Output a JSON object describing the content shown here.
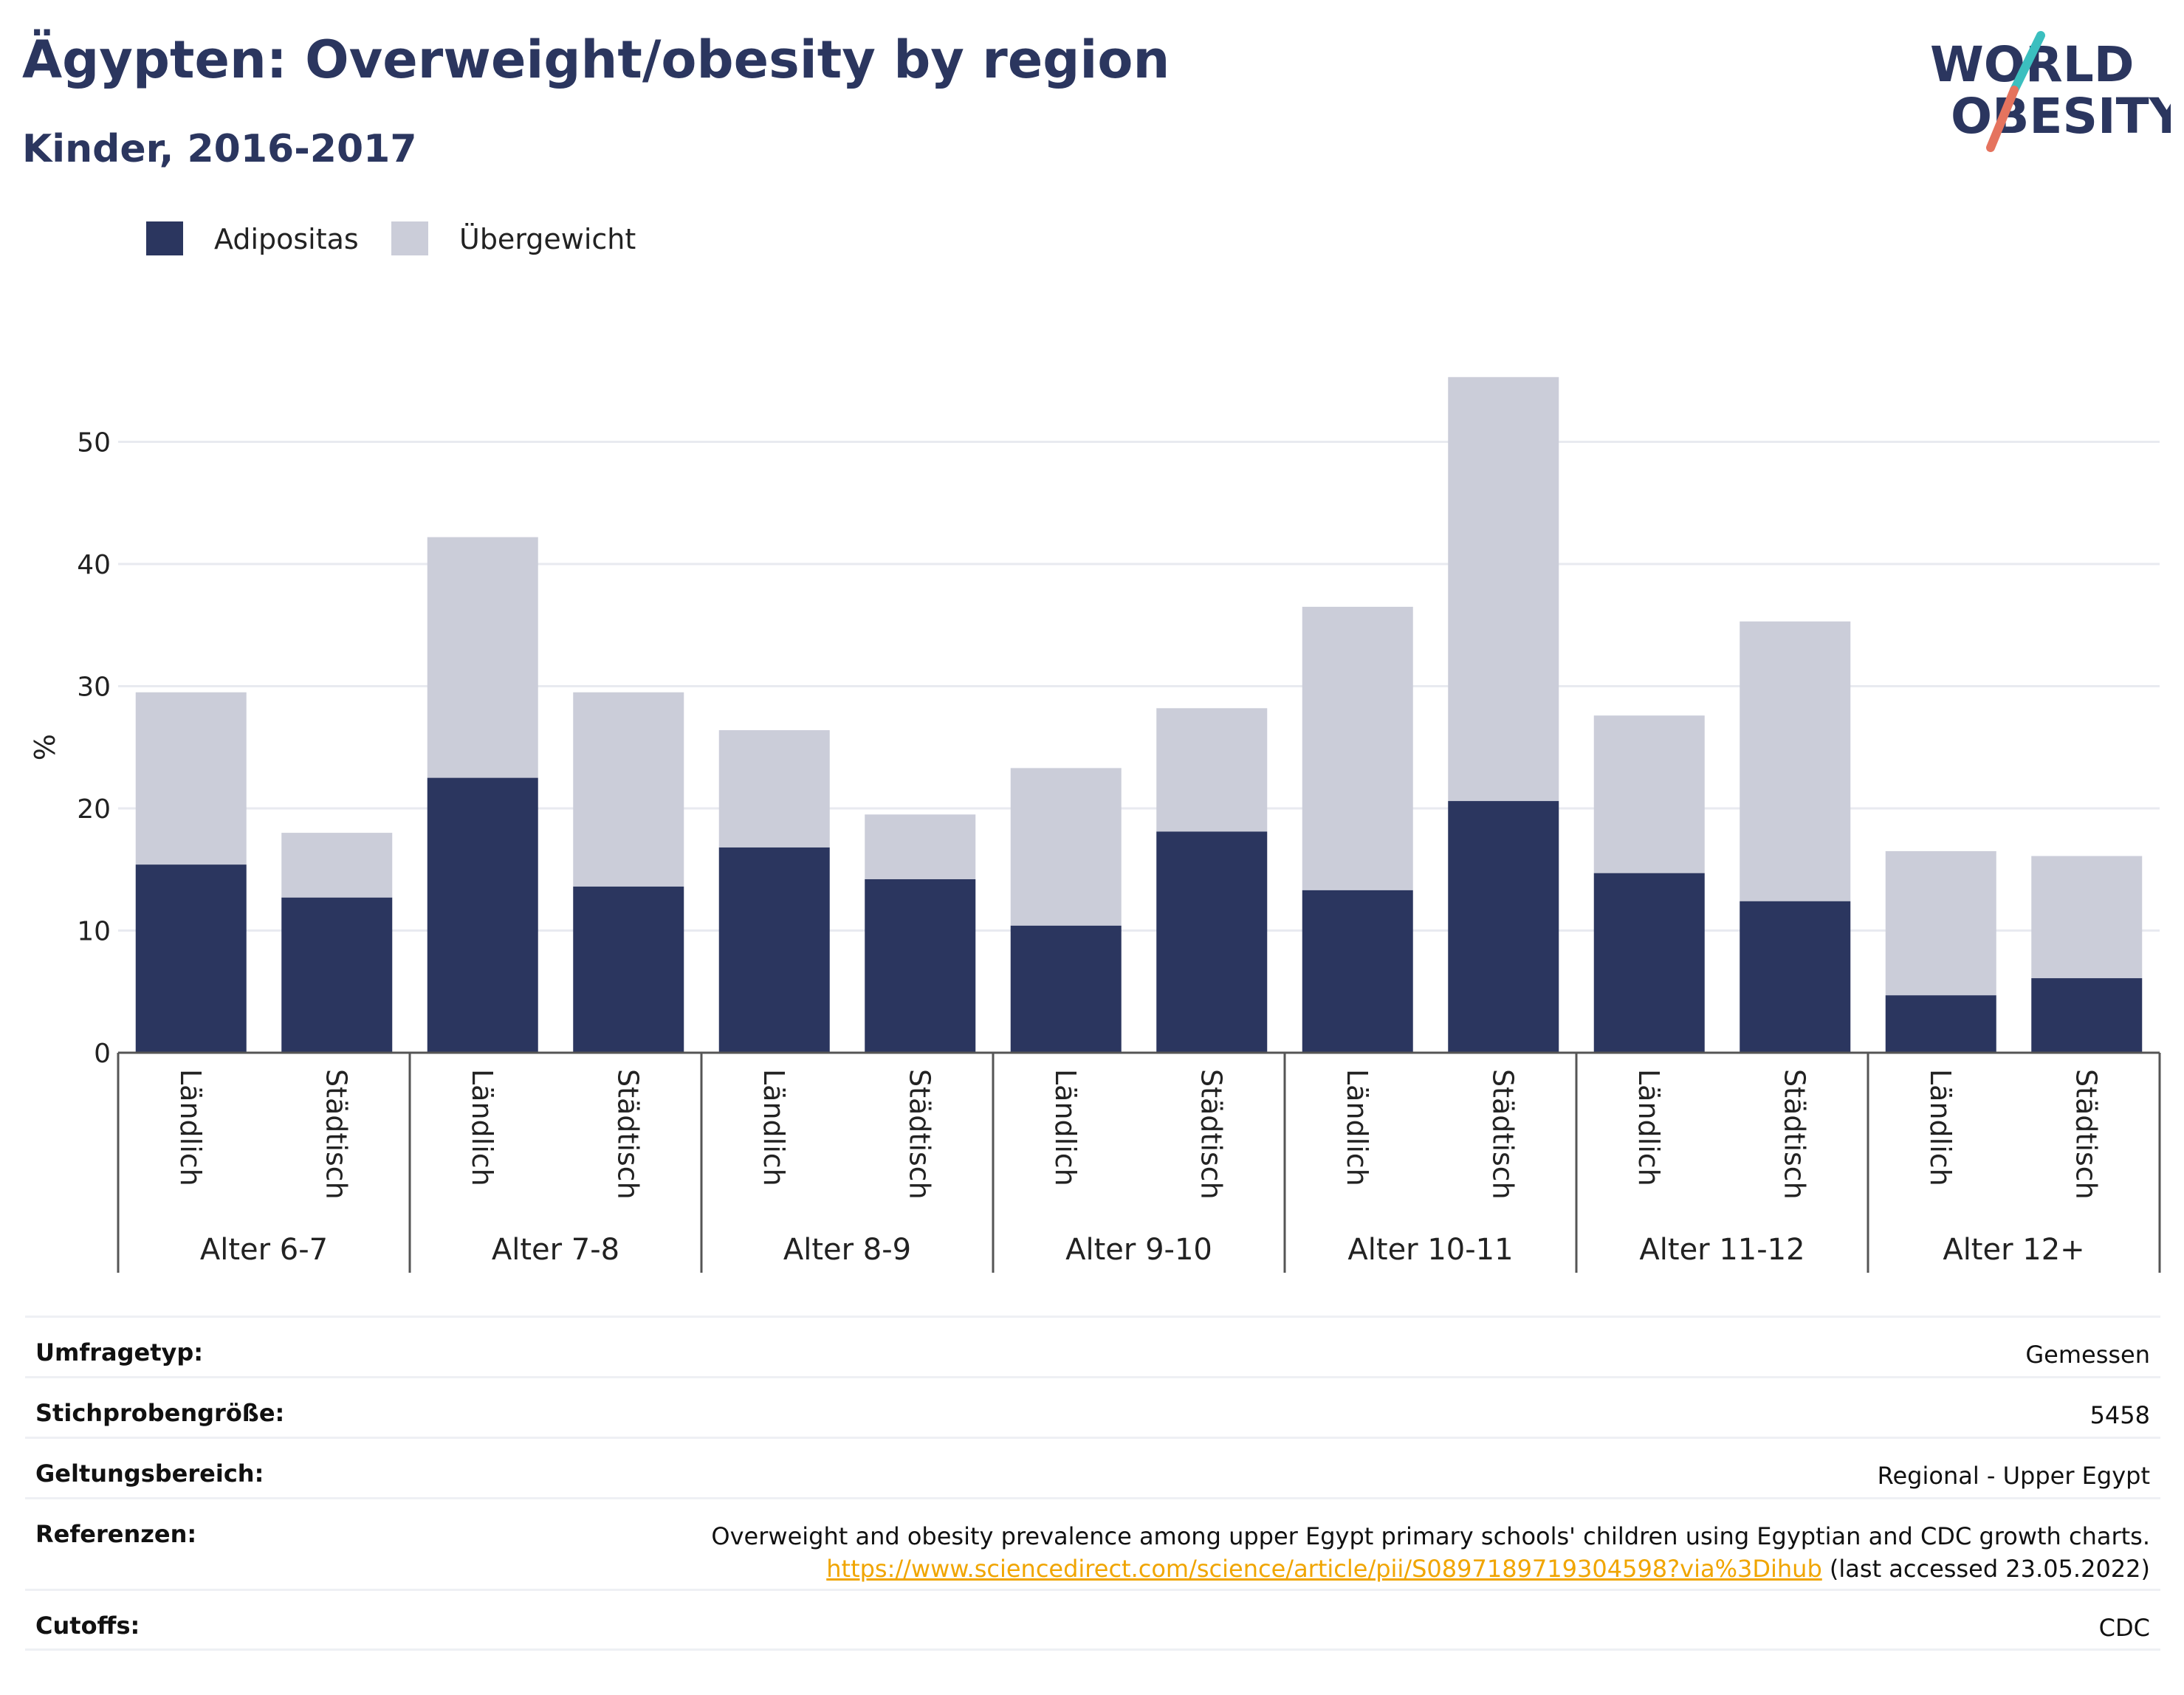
{
  "header": {
    "title": "Ägypten: Overweight/obesity by region",
    "subtitle": "Kinder, 2016-2017"
  },
  "logo": {
    "line1": "WORLD",
    "line2": "OBESITY",
    "colors": {
      "text": "#2b365f",
      "slash_top": "#3bbfbf",
      "slash_bottom": "#e5735e"
    }
  },
  "legend": [
    {
      "label": "Adipositas",
      "color": "#2b365f"
    },
    {
      "label": "Übergewicht",
      "color": "#cbcdd9"
    }
  ],
  "chart_data": {
    "type": "bar",
    "stacked": true,
    "ylabel": "%",
    "ylim": [
      0,
      57
    ],
    "yticks": [
      0,
      10,
      20,
      30,
      40,
      50
    ],
    "grid": true,
    "legend_position": "top-left",
    "groups": [
      "Alter 6-7",
      "Alter 7-8",
      "Alter 8-9",
      "Alter 9-10",
      "Alter 10-11",
      "Alter 11-12",
      "Alter 12+"
    ],
    "subcategories": [
      "Ländlich",
      "Städtisch"
    ],
    "series": [
      {
        "name": "Adipositas",
        "color": "#2b365f",
        "values": [
          15.4,
          12.7,
          22.5,
          13.6,
          16.8,
          14.2,
          10.4,
          18.1,
          13.3,
          20.6,
          14.7,
          12.4,
          4.7,
          6.1
        ]
      },
      {
        "name": "Übergewicht",
        "color": "#cbcdd9",
        "values": [
          14.1,
          5.3,
          19.7,
          15.9,
          9.6,
          5.3,
          12.9,
          10.1,
          23.2,
          34.7,
          12.9,
          22.9,
          11.8,
          10.0
        ]
      }
    ]
  },
  "meta": [
    {
      "key": "Umfragetyp:",
      "value": "Gemessen"
    },
    {
      "key": "Stichprobengröße:",
      "value": "5458"
    },
    {
      "key": "Geltungsbereich:",
      "value": "Regional - Upper Egypt"
    },
    {
      "key": "Referenzen:",
      "value": "Overweight and obesity prevalence among upper Egypt primary schools' children using Egyptian and CDC growth charts.",
      "link": "https://www.sciencedirect.com/science/article/pii/S0897189719304598?via%3Dihub",
      "link_suffix": " (last accessed 23.05.2022)"
    },
    {
      "key": "Cutoffs:",
      "value": "CDC"
    }
  ]
}
